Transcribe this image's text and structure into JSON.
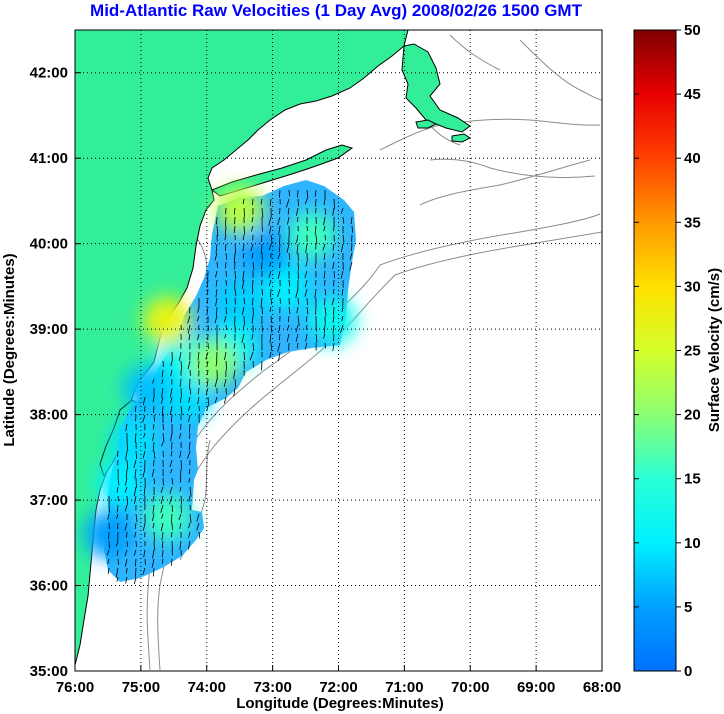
{
  "title": "Mid-Atlantic Raw Velocities (1 Day Avg) 2008/02/26 1500 GMT",
  "x_axis": {
    "label": "Longitude (Degrees:Minutes)",
    "ticks": [
      "76:00",
      "75:00",
      "74:00",
      "73:00",
      "72:00",
      "71:00",
      "70:00",
      "69:00",
      "68:00"
    ]
  },
  "y_axis": {
    "label": "Latitude (Degrees:Minutes)",
    "ticks": [
      "35:00",
      "36:00",
      "37:00",
      "38:00",
      "39:00",
      "40:00",
      "41:00",
      "42:00"
    ]
  },
  "colorbar": {
    "label": "Surface Velocity (cm/s)",
    "ticks": [
      "0",
      "5",
      "10",
      "15",
      "20",
      "25",
      "30",
      "35",
      "40",
      "45",
      "50"
    ],
    "range": [
      0,
      50
    ],
    "colormap": "jet"
  },
  "colors": {
    "title": "#0000ff",
    "land": "#33ee99",
    "isobath": "#8c8c8c",
    "background": "#ffffff"
  },
  "chart_data": {
    "type": "heatmap",
    "title": "Mid-Atlantic Raw Velocities (1 Day Avg) 2008/02/26 1500 GMT",
    "xlabel": "Longitude (Degrees:Minutes)",
    "ylabel": "Latitude (Degrees:Minutes)",
    "xlim": [
      -76,
      -68
    ],
    "ylim": [
      35,
      42.5
    ],
    "colorbar_label": "Surface Velocity (cm/s)",
    "colorbar_range": [
      0,
      50
    ],
    "grid": true,
    "vectors": "black arrows showing surface current direction",
    "velocity_patches": [
      {
        "lon": -75.5,
        "lat": 36.6,
        "speed": 5
      },
      {
        "lon": -75.3,
        "lat": 37.2,
        "speed": 10
      },
      {
        "lon": -74.6,
        "lat": 36.8,
        "speed": 16
      },
      {
        "lon": -75.1,
        "lat": 37.7,
        "speed": 9
      },
      {
        "lon": -74.9,
        "lat": 38.3,
        "speed": 7
      },
      {
        "lon": -74.3,
        "lat": 38.2,
        "speed": 9
      },
      {
        "lon": -74.4,
        "lat": 38.7,
        "speed": 12
      },
      {
        "lon": -73.6,
        "lat": 38.8,
        "speed": 12
      },
      {
        "lon": -73.5,
        "lat": 39.3,
        "speed": 8
      },
      {
        "lon": -72.8,
        "lat": 39.5,
        "speed": 10
      },
      {
        "lon": -72.1,
        "lat": 39.1,
        "speed": 12
      },
      {
        "lon": -73.1,
        "lat": 39.9,
        "speed": 5
      },
      {
        "lon": -72.4,
        "lat": 40.1,
        "speed": 16
      },
      {
        "lon": -74.6,
        "lat": 39.1,
        "speed": 27
      },
      {
        "lon": -73.9,
        "lat": 38.6,
        "speed": 20
      },
      {
        "lon": -73.5,
        "lat": 40.4,
        "speed": 23
      }
    ]
  }
}
